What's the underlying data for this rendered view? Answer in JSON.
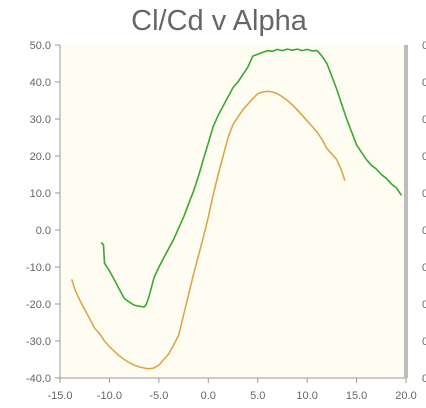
{
  "chart_data": {
    "type": "line",
    "title": "Cl/Cd v Alpha",
    "xlabel": "",
    "ylabel": "",
    "xlim": [
      -15,
      20
    ],
    "ylim": [
      -40,
      50
    ],
    "x_ticks": [
      "-15.0",
      "-10.0",
      "-5.0",
      "0.0",
      "5.0",
      "10.0",
      "15.0",
      "20.0"
    ],
    "y_ticks": [
      "-40.0",
      "-30.0",
      "-20.0",
      "-10.0",
      "0.0",
      "10.0",
      "20.0",
      "30.0",
      "40.0",
      "50.0"
    ],
    "right_axis_ticks": [
      "0",
      "0",
      "0",
      "0",
      "0",
      "0",
      "0",
      "0",
      "0",
      "0"
    ],
    "grid": false,
    "background_color": "#fffcf2",
    "series": [
      {
        "color": "#3aa832",
        "points": [
          [
            -10.8,
            -3.5
          ],
          [
            -10.6,
            -4.0
          ],
          [
            -10.5,
            -9.0
          ],
          [
            -10.0,
            -11.0
          ],
          [
            -9.5,
            -13.5
          ],
          [
            -9.0,
            -16.0
          ],
          [
            -8.5,
            -18.5
          ],
          [
            -8.0,
            -19.5
          ],
          [
            -7.5,
            -20.3
          ],
          [
            -7.0,
            -20.6
          ],
          [
            -6.5,
            -20.8
          ],
          [
            -6.3,
            -20.3
          ],
          [
            -6.0,
            -18.0
          ],
          [
            -5.5,
            -13.0
          ],
          [
            -5.0,
            -10.0
          ],
          [
            -4.5,
            -7.5
          ],
          [
            -4.0,
            -5.0
          ],
          [
            -3.5,
            -2.5
          ],
          [
            -3.0,
            0.5
          ],
          [
            -2.5,
            3.5
          ],
          [
            -2.0,
            7.0
          ],
          [
            -1.5,
            10.5
          ],
          [
            -1.0,
            14.5
          ],
          [
            -0.5,
            19.0
          ],
          [
            0.0,
            23.5
          ],
          [
            0.5,
            28.0
          ],
          [
            1.0,
            31.0
          ],
          [
            1.5,
            33.5
          ],
          [
            2.0,
            36.0
          ],
          [
            2.5,
            38.5
          ],
          [
            3.0,
            40.0
          ],
          [
            3.5,
            42.0
          ],
          [
            4.0,
            44.0
          ],
          [
            4.5,
            47.0
          ],
          [
            5.0,
            47.5
          ],
          [
            5.5,
            48.0
          ],
          [
            6.0,
            48.5
          ],
          [
            6.5,
            48.3
          ],
          [
            7.0,
            48.8
          ],
          [
            7.5,
            48.5
          ],
          [
            8.0,
            48.9
          ],
          [
            8.5,
            48.6
          ],
          [
            9.0,
            48.9
          ],
          [
            9.5,
            48.5
          ],
          [
            10.0,
            48.8
          ],
          [
            10.5,
            48.4
          ],
          [
            11.0,
            48.5
          ],
          [
            11.5,
            47.0
          ],
          [
            12.0,
            45.0
          ],
          [
            12.5,
            41.5
          ],
          [
            13.0,
            38.0
          ],
          [
            13.5,
            34.0
          ],
          [
            14.0,
            30.0
          ],
          [
            14.5,
            26.5
          ],
          [
            15.0,
            23.0
          ],
          [
            15.5,
            21.0
          ],
          [
            16.0,
            19.0
          ],
          [
            16.5,
            17.5
          ],
          [
            17.0,
            16.5
          ],
          [
            17.5,
            15.0
          ],
          [
            18.0,
            14.0
          ],
          [
            18.5,
            12.5
          ],
          [
            19.0,
            11.5
          ],
          [
            19.5,
            9.5
          ]
        ]
      },
      {
        "color": "#d9a84a",
        "points": [
          [
            -13.8,
            -13.5
          ],
          [
            -13.5,
            -16.0
          ],
          [
            -13.0,
            -19.0
          ],
          [
            -12.5,
            -21.5
          ],
          [
            -12.0,
            -24.0
          ],
          [
            -11.5,
            -26.5
          ],
          [
            -11.0,
            -28.0
          ],
          [
            -10.5,
            -30.0
          ],
          [
            -10.0,
            -31.5
          ],
          [
            -9.5,
            -32.8
          ],
          [
            -9.0,
            -34.0
          ],
          [
            -8.5,
            -35.0
          ],
          [
            -8.0,
            -35.8
          ],
          [
            -7.5,
            -36.5
          ],
          [
            -7.0,
            -37.0
          ],
          [
            -6.5,
            -37.3
          ],
          [
            -6.0,
            -37.5
          ],
          [
            -5.5,
            -37.3
          ],
          [
            -5.0,
            -36.5
          ],
          [
            -4.5,
            -35.0
          ],
          [
            -4.0,
            -33.5
          ],
          [
            -3.5,
            -31.0
          ],
          [
            -3.0,
            -28.5
          ],
          [
            -2.5,
            -23.0
          ],
          [
            -2.0,
            -17.5
          ],
          [
            -1.5,
            -12.0
          ],
          [
            -1.0,
            -7.0
          ],
          [
            -0.5,
            -2.0
          ],
          [
            0.0,
            3.5
          ],
          [
            0.5,
            9.5
          ],
          [
            1.0,
            15.0
          ],
          [
            1.5,
            20.0
          ],
          [
            2.0,
            25.0
          ],
          [
            2.5,
            28.5
          ],
          [
            3.0,
            30.5
          ],
          [
            3.5,
            32.5
          ],
          [
            4.0,
            34.0
          ],
          [
            4.5,
            35.5
          ],
          [
            5.0,
            36.8
          ],
          [
            5.5,
            37.3
          ],
          [
            6.0,
            37.5
          ],
          [
            6.5,
            37.3
          ],
          [
            7.0,
            36.8
          ],
          [
            7.5,
            36.0
          ],
          [
            8.0,
            35.0
          ],
          [
            8.5,
            33.8
          ],
          [
            9.0,
            32.5
          ],
          [
            9.5,
            31.0
          ],
          [
            10.0,
            29.5
          ],
          [
            10.5,
            28.0
          ],
          [
            11.0,
            26.5
          ],
          [
            11.5,
            24.5
          ],
          [
            12.0,
            22.0
          ],
          [
            12.5,
            20.5
          ],
          [
            13.0,
            19.0
          ],
          [
            13.5,
            16.0
          ],
          [
            13.8,
            13.5
          ]
        ]
      }
    ]
  }
}
